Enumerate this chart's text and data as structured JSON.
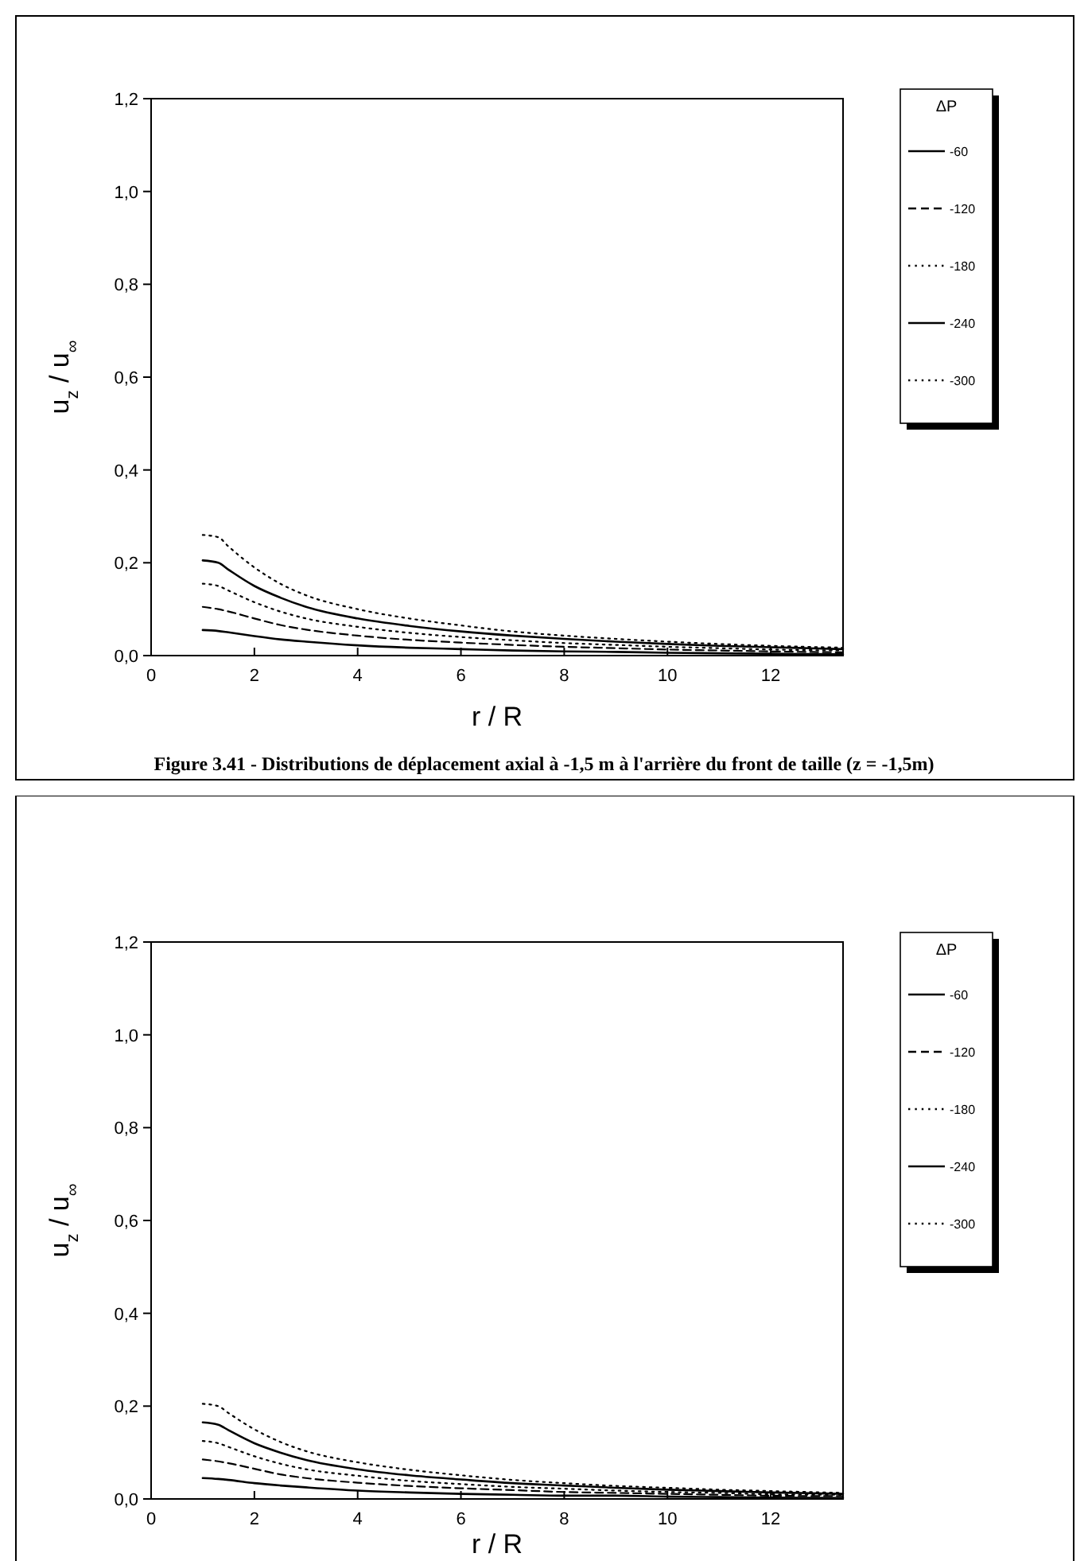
{
  "chart_data": [
    {
      "type": "line",
      "xlabel": "r / R",
      "ylabel": "u$_{z}$ / u$_{∞}$",
      "legend_title": "ΔP",
      "legend": "right",
      "annotations": [
        "Figure 3.41 - Distributions de déplacement axial à -1,5 m à l'arrière du front de taille (z = -1,5m)"
      ],
      "xlim": [
        0,
        13.4
      ],
      "xticks": [
        0,
        2,
        4,
        6,
        8,
        10,
        12
      ],
      "ylim": [
        0,
        1.2
      ],
      "yticks": [
        {
          "value": 0,
          "label": "0,0"
        },
        {
          "value": 0.2,
          "label": "0,2"
        },
        {
          "value": 0.4,
          "label": "0,4"
        },
        {
          "value": 0.6,
          "label": "0,6"
        },
        {
          "value": 0.8,
          "label": "0,8"
        },
        {
          "value": 1.0,
          "label": "1,0"
        },
        {
          "value": 1.2,
          "label": "1,2"
        }
      ],
      "x": [
        1,
        1.3,
        1.5,
        2,
        2.5,
        3,
        4,
        5,
        6,
        7,
        8,
        9,
        10,
        11,
        12,
        13.4
      ],
      "series": [
        {
          "name": "-60",
          "color": "#000000",
          "line_style": "solid",
          "values": [
            0.055,
            0.053,
            0.05,
            0.042,
            0.035,
            0.03,
            0.022,
            0.017,
            0.014,
            0.011,
            0.009,
            0.008,
            0.006,
            0.005,
            0.004,
            0.003
          ]
        },
        {
          "name": "-120",
          "color": "#000000",
          "line_style": "dashed",
          "values": [
            0.105,
            0.1,
            0.095,
            0.08,
            0.066,
            0.056,
            0.043,
            0.034,
            0.028,
            0.023,
            0.019,
            0.016,
            0.013,
            0.011,
            0.009,
            0.007
          ]
        },
        {
          "name": "-180",
          "color": "#000000",
          "line_style": "dotted",
          "values": [
            0.155,
            0.15,
            0.14,
            0.115,
            0.095,
            0.08,
            0.062,
            0.049,
            0.04,
            0.033,
            0.027,
            0.023,
            0.019,
            0.016,
            0.013,
            0.011
          ]
        },
        {
          "name": "-240",
          "color": "#000000",
          "line_style": "solid",
          "values": [
            0.205,
            0.2,
            0.185,
            0.15,
            0.125,
            0.105,
            0.08,
            0.064,
            0.052,
            0.043,
            0.036,
            0.03,
            0.025,
            0.021,
            0.018,
            0.014
          ]
        },
        {
          "name": "-300",
          "color": "#000000",
          "line_style": "dotted",
          "values": [
            0.26,
            0.255,
            0.235,
            0.19,
            0.155,
            0.13,
            0.1,
            0.08,
            0.065,
            0.052,
            0.043,
            0.036,
            0.03,
            0.025,
            0.021,
            0.017
          ]
        }
      ]
    },
    {
      "type": "line",
      "xlabel": "r / R",
      "ylabel": "u$_{z}$ / u$_{∞}$",
      "legend_title": "ΔP",
      "legend": "right",
      "xlim": [
        0,
        13.4
      ],
      "xticks": [
        0,
        2,
        4,
        6,
        8,
        10,
        12
      ],
      "ylim": [
        0,
        1.2
      ],
      "yticks": [
        {
          "value": 0,
          "label": "0,0"
        },
        {
          "value": 0.2,
          "label": "0,2"
        },
        {
          "value": 0.4,
          "label": "0,4"
        },
        {
          "value": 0.6,
          "label": "0,6"
        },
        {
          "value": 0.8,
          "label": "0,8"
        },
        {
          "value": 1.0,
          "label": "1,0"
        },
        {
          "value": 1.2,
          "label": "1,2"
        }
      ],
      "x": [
        1,
        1.3,
        1.5,
        2,
        2.5,
        3,
        4,
        5,
        6,
        7,
        8,
        9,
        10,
        11,
        12,
        13.4
      ],
      "series": [
        {
          "name": "-60",
          "color": "#000000",
          "line_style": "solid",
          "values": [
            0.045,
            0.043,
            0.041,
            0.034,
            0.029,
            0.025,
            0.018,
            0.014,
            0.011,
            0.009,
            0.007,
            0.007,
            0.005,
            0.004,
            0.003,
            0.002
          ]
        },
        {
          "name": "-120",
          "color": "#000000",
          "line_style": "dashed",
          "values": [
            0.085,
            0.081,
            0.077,
            0.065,
            0.053,
            0.045,
            0.035,
            0.028,
            0.023,
            0.019,
            0.015,
            0.013,
            0.011,
            0.009,
            0.007,
            0.006
          ]
        },
        {
          "name": "-180",
          "color": "#000000",
          "line_style": "dotted",
          "values": [
            0.125,
            0.12,
            0.112,
            0.092,
            0.076,
            0.064,
            0.05,
            0.039,
            0.032,
            0.026,
            0.022,
            0.018,
            0.015,
            0.013,
            0.01,
            0.009
          ]
        },
        {
          "name": "-240",
          "color": "#000000",
          "line_style": "solid",
          "values": [
            0.165,
            0.16,
            0.148,
            0.12,
            0.1,
            0.084,
            0.064,
            0.051,
            0.042,
            0.034,
            0.029,
            0.024,
            0.02,
            0.017,
            0.014,
            0.011
          ]
        },
        {
          "name": "-300",
          "color": "#000000",
          "line_style": "dotted",
          "values": [
            0.205,
            0.2,
            0.185,
            0.15,
            0.123,
            0.103,
            0.079,
            0.063,
            0.051,
            0.041,
            0.034,
            0.028,
            0.024,
            0.02,
            0.017,
            0.013
          ]
        }
      ]
    }
  ]
}
